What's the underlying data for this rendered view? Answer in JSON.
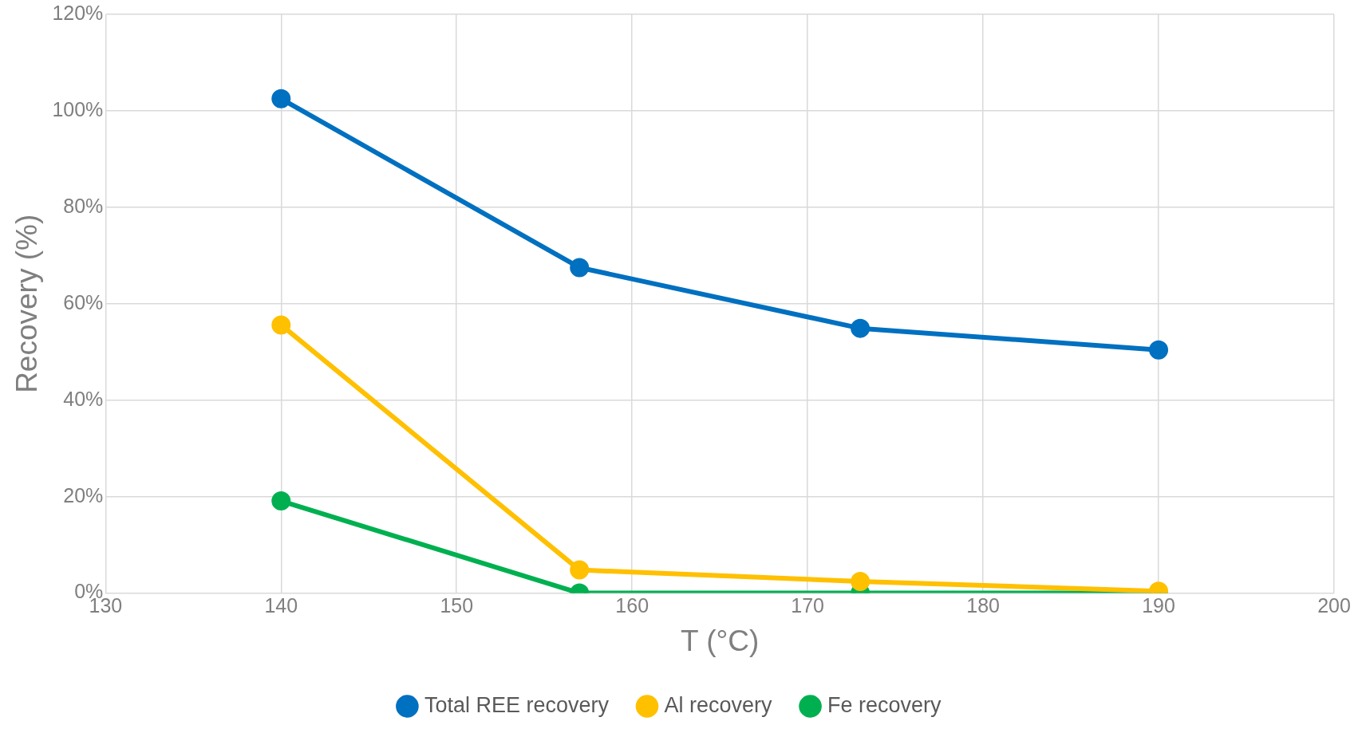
{
  "chart_data": {
    "type": "line",
    "xlabel": "T (°C)",
    "ylabel": "Recovery (%)",
    "x": [
      140,
      157,
      173,
      190
    ],
    "series": [
      {
        "name": "Total REE recovery",
        "color": "#0070c0",
        "values": [
          102.5,
          67.5,
          54.9,
          50.4
        ]
      },
      {
        "name": "Al recovery",
        "color": "#ffc000",
        "values": [
          55.6,
          4.8,
          2.4,
          0.4
        ]
      },
      {
        "name": "Fe recovery",
        "color": "#00b050",
        "values": [
          19.1,
          0,
          0,
          0
        ]
      }
    ],
    "xlim": [
      130,
      200
    ],
    "xticks": [
      130,
      140,
      150,
      160,
      170,
      180,
      190,
      200
    ],
    "ylim": [
      0,
      120
    ],
    "yticks": [
      {
        "value": 0,
        "label": "0%"
      },
      {
        "value": 20,
        "label": "20%"
      },
      {
        "value": 40,
        "label": "40%"
      },
      {
        "value": 60,
        "label": "60%"
      },
      {
        "value": 80,
        "label": "80%"
      },
      {
        "value": 100,
        "label": "100%"
      },
      {
        "value": 120,
        "label": "120%"
      }
    ],
    "grid": true,
    "legend": "bottom",
    "marker": "circle",
    "line_style": "solid"
  }
}
